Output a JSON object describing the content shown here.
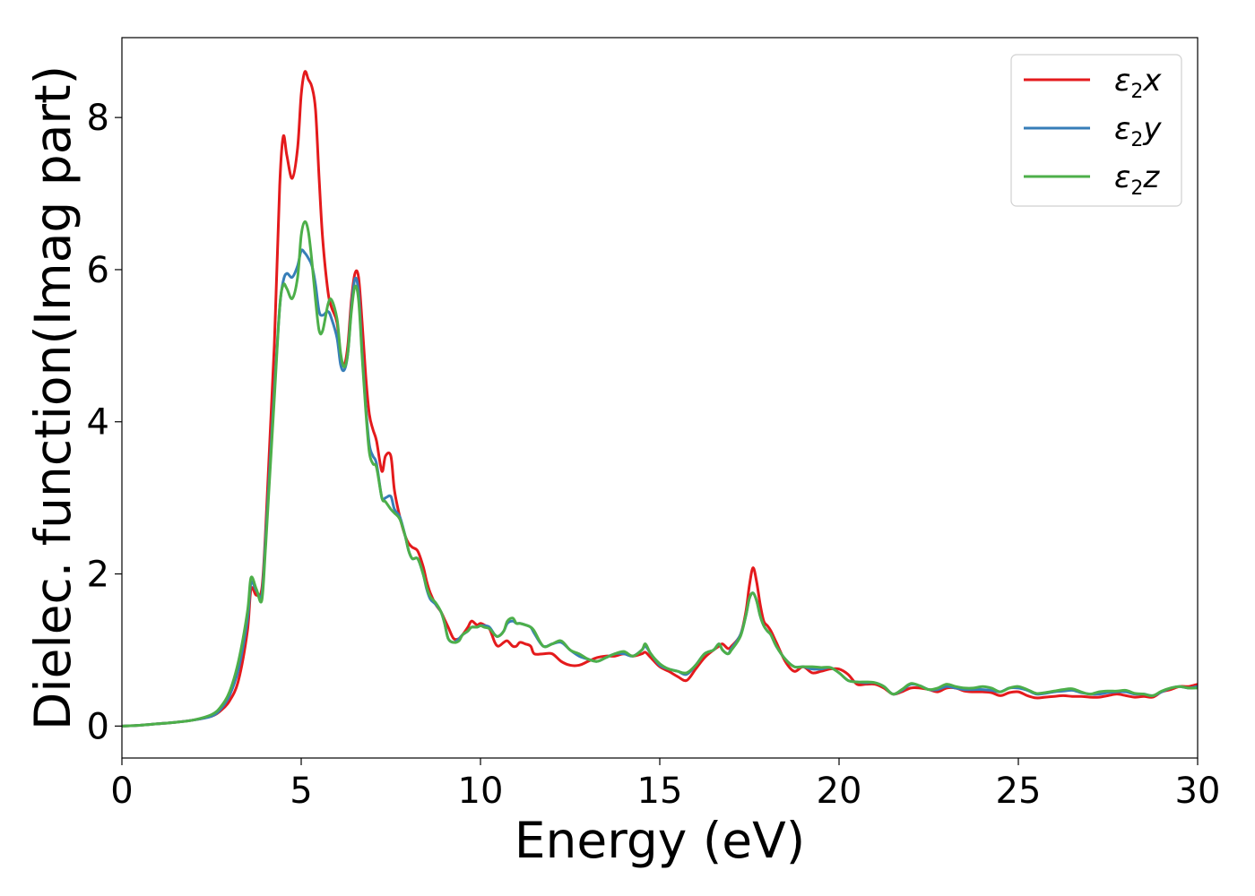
{
  "chart_data": {
    "type": "line",
    "xlabel": "Energy (eV)",
    "ylabel": "Dielec. function(Imag part)",
    "xlim": [
      0,
      30
    ],
    "ylim": [
      -0.42,
      9.05
    ],
    "xticks": [
      0,
      5,
      10,
      15,
      20,
      25,
      30
    ],
    "yticks": [
      0,
      2,
      4,
      6,
      8
    ],
    "grid": false,
    "legend_position": "top-right",
    "x": [
      0,
      0.5,
      1,
      1.5,
      2,
      2.5,
      2.75,
      3,
      3.25,
      3.5,
      3.6,
      3.75,
      3.9,
      4,
      4.1,
      4.25,
      4.4,
      4.5,
      4.6,
      4.75,
      4.9,
      5,
      5.1,
      5.2,
      5.3,
      5.4,
      5.5,
      5.6,
      5.75,
      5.85,
      6,
      6.1,
      6.2,
      6.3,
      6.4,
      6.5,
      6.6,
      6.7,
      6.8,
      6.9,
      7,
      7.1,
      7.25,
      7.35,
      7.5,
      7.6,
      7.75,
      7.9,
      8,
      8.1,
      8.25,
      8.4,
      8.5,
      8.6,
      8.75,
      8.9,
      9,
      9.1,
      9.25,
      9.4,
      9.5,
      9.65,
      9.75,
      9.9,
      10,
      10.1,
      10.25,
      10.4,
      10.5,
      10.65,
      10.75,
      10.9,
      11,
      11.1,
      11.25,
      11.4,
      11.5,
      11.75,
      12,
      12.25,
      12.5,
      12.75,
      13,
      13.25,
      13.5,
      13.75,
      14,
      14.25,
      14.5,
      14.6,
      14.75,
      15,
      15.25,
      15.5,
      15.75,
      16,
      16.25,
      16.5,
      16.65,
      16.75,
      16.9,
      17,
      17.25,
      17.4,
      17.5,
      17.6,
      17.7,
      17.8,
      17.9,
      18,
      18.1,
      18.25,
      18.5,
      18.75,
      19,
      19.25,
      19.5,
      19.75,
      20,
      20.25,
      20.5,
      20.75,
      21,
      21.25,
      21.5,
      21.75,
      22,
      22.25,
      22.5,
      22.75,
      23,
      23.25,
      23.5,
      23.75,
      24,
      24.25,
      24.5,
      24.75,
      25,
      25.25,
      25.5,
      25.75,
      26,
      26.25,
      26.5,
      26.75,
      27,
      27.25,
      27.5,
      27.75,
      28,
      28.25,
      28.5,
      28.75,
      29,
      29.25,
      29.5,
      29.75,
      30
    ],
    "series": [
      {
        "name": "ε2x",
        "color": "#e41a1c",
        "values": [
          0,
          0.01,
          0.03,
          0.05,
          0.08,
          0.13,
          0.2,
          0.33,
          0.6,
          1.25,
          1.8,
          1.72,
          1.8,
          2.5,
          3.5,
          5.0,
          7.1,
          7.75,
          7.5,
          7.2,
          7.6,
          8.3,
          8.6,
          8.5,
          8.4,
          8.1,
          7.2,
          6.4,
          5.7,
          5.5,
          5.3,
          4.85,
          4.75,
          5.0,
          5.6,
          5.95,
          5.9,
          5.3,
          4.6,
          4.1,
          3.9,
          3.75,
          3.35,
          3.55,
          3.55,
          3.1,
          2.75,
          2.5,
          2.4,
          2.35,
          2.3,
          2.1,
          1.9,
          1.75,
          1.6,
          1.5,
          1.4,
          1.3,
          1.15,
          1.15,
          1.2,
          1.3,
          1.38,
          1.33,
          1.35,
          1.33,
          1.28,
          1.1,
          1.05,
          1.1,
          1.12,
          1.05,
          1.05,
          1.1,
          1.08,
          1.05,
          0.95,
          0.95,
          0.95,
          0.85,
          0.8,
          0.8,
          0.85,
          0.9,
          0.92,
          0.92,
          0.95,
          0.92,
          0.95,
          0.97,
          0.9,
          0.78,
          0.72,
          0.65,
          0.6,
          0.75,
          0.9,
          1.0,
          1.05,
          1.08,
          1.02,
          1.05,
          1.2,
          1.5,
          1.85,
          2.08,
          1.9,
          1.6,
          1.38,
          1.32,
          1.25,
          1.1,
          0.85,
          0.72,
          0.78,
          0.7,
          0.72,
          0.75,
          0.75,
          0.68,
          0.55,
          0.55,
          0.55,
          0.5,
          0.42,
          0.45,
          0.5,
          0.5,
          0.48,
          0.45,
          0.5,
          0.5,
          0.46,
          0.45,
          0.45,
          0.44,
          0.4,
          0.44,
          0.45,
          0.4,
          0.37,
          0.38,
          0.39,
          0.4,
          0.39,
          0.39,
          0.38,
          0.38,
          0.4,
          0.42,
          0.4,
          0.38,
          0.39,
          0.38,
          0.45,
          0.48,
          0.52,
          0.52,
          0.55
        ]
      },
      {
        "name": "ε2y",
        "color": "#377eb8",
        "values": [
          0,
          0.01,
          0.03,
          0.05,
          0.08,
          0.13,
          0.22,
          0.4,
          0.75,
          1.4,
          1.88,
          1.78,
          1.72,
          2.4,
          3.2,
          4.4,
          5.5,
          5.85,
          5.95,
          5.9,
          6.05,
          6.25,
          6.22,
          6.15,
          6.05,
          5.8,
          5.45,
          5.4,
          5.45,
          5.35,
          5.1,
          4.75,
          4.68,
          4.9,
          5.5,
          5.88,
          5.7,
          4.9,
          4.2,
          3.7,
          3.55,
          3.45,
          3.0,
          3.0,
          3.02,
          2.85,
          2.75,
          2.5,
          2.3,
          2.2,
          2.2,
          2.0,
          1.8,
          1.67,
          1.6,
          1.5,
          1.35,
          1.15,
          1.1,
          1.15,
          1.2,
          1.25,
          1.3,
          1.3,
          1.32,
          1.32,
          1.3,
          1.2,
          1.18,
          1.25,
          1.35,
          1.38,
          1.35,
          1.35,
          1.33,
          1.3,
          1.22,
          1.05,
          1.08,
          1.1,
          1.0,
          0.92,
          0.88,
          0.85,
          0.9,
          0.95,
          0.95,
          0.92,
          1.0,
          1.05,
          0.95,
          0.8,
          0.75,
          0.72,
          0.68,
          0.8,
          0.95,
          1.0,
          1.08,
          1.0,
          0.95,
          1.02,
          1.2,
          1.45,
          1.68,
          1.75,
          1.65,
          1.45,
          1.32,
          1.25,
          1.2,
          1.05,
          0.88,
          0.78,
          0.78,
          0.75,
          0.75,
          0.77,
          0.7,
          0.6,
          0.58,
          0.57,
          0.57,
          0.52,
          0.42,
          0.47,
          0.55,
          0.53,
          0.48,
          0.48,
          0.52,
          0.5,
          0.48,
          0.48,
          0.48,
          0.47,
          0.45,
          0.5,
          0.5,
          0.47,
          0.42,
          0.43,
          0.45,
          0.46,
          0.47,
          0.44,
          0.42,
          0.42,
          0.44,
          0.45,
          0.45,
          0.42,
          0.42,
          0.4,
          0.45,
          0.5,
          0.52,
          0.5,
          0.52
        ]
      },
      {
        "name": "ε2z",
        "color": "#4daf4a",
        "values": [
          0,
          0.01,
          0.03,
          0.05,
          0.08,
          0.15,
          0.25,
          0.45,
          0.85,
          1.5,
          1.95,
          1.8,
          1.65,
          2.3,
          3.1,
          4.3,
          5.5,
          5.8,
          5.75,
          5.62,
          5.9,
          6.45,
          6.63,
          6.5,
          6.1,
          5.6,
          5.2,
          5.2,
          5.55,
          5.6,
          5.35,
          4.9,
          4.72,
          4.9,
          5.45,
          5.78,
          5.6,
          4.85,
          4.15,
          3.6,
          3.45,
          3.4,
          3.0,
          2.95,
          2.85,
          2.8,
          2.72,
          2.5,
          2.3,
          2.2,
          2.2,
          2.0,
          1.82,
          1.7,
          1.62,
          1.5,
          1.35,
          1.15,
          1.1,
          1.12,
          1.2,
          1.25,
          1.3,
          1.3,
          1.32,
          1.3,
          1.28,
          1.2,
          1.18,
          1.25,
          1.38,
          1.42,
          1.35,
          1.35,
          1.33,
          1.3,
          1.25,
          1.05,
          1.08,
          1.12,
          1.0,
          0.95,
          0.88,
          0.85,
          0.9,
          0.95,
          0.98,
          0.92,
          1.0,
          1.08,
          0.95,
          0.82,
          0.75,
          0.72,
          0.7,
          0.8,
          0.95,
          1.0,
          1.08,
          1.0,
          0.95,
          1.0,
          1.18,
          1.45,
          1.68,
          1.75,
          1.65,
          1.45,
          1.32,
          1.25,
          1.2,
          1.05,
          0.88,
          0.78,
          0.78,
          0.78,
          0.77,
          0.77,
          0.7,
          0.6,
          0.58,
          0.58,
          0.57,
          0.52,
          0.42,
          0.48,
          0.56,
          0.53,
          0.48,
          0.5,
          0.55,
          0.52,
          0.5,
          0.5,
          0.52,
          0.5,
          0.45,
          0.5,
          0.52,
          0.48,
          0.43,
          0.44,
          0.46,
          0.48,
          0.49,
          0.45,
          0.42,
          0.45,
          0.46,
          0.46,
          0.47,
          0.43,
          0.42,
          0.4,
          0.46,
          0.5,
          0.52,
          0.5,
          0.5
        ]
      }
    ]
  }
}
